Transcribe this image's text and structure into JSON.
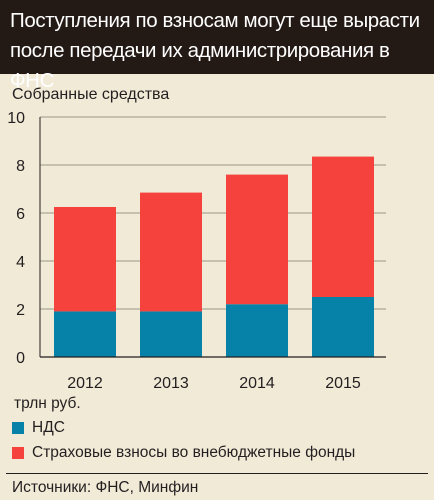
{
  "title": "Поступления по взносам могут еще вырасти после передачи их администрирования в ФНС",
  "chart_data": {
    "type": "bar",
    "stacked": true,
    "subtitle": "Собранные средства",
    "unit": "трлн руб.",
    "categories": [
      "2012",
      "2013",
      "2014",
      "2015"
    ],
    "series": [
      {
        "name": "НДС",
        "values": [
          1.9,
          1.9,
          2.2,
          2.5
        ],
        "color": "#0681a8"
      },
      {
        "name": "Страховые взносы во внебюджетные фонды",
        "values": [
          4.35,
          4.95,
          5.4,
          5.85
        ],
        "color": "#f6423c"
      }
    ],
    "ylim": [
      0,
      10
    ],
    "yticks": [
      0,
      2,
      4,
      6,
      8,
      10
    ],
    "grid": true,
    "legend_position": "bottom-left"
  },
  "source": "Источники: ФНС, Минфин",
  "colors": {
    "background": "#f1ead7",
    "header": "#241a15",
    "grid": "#9c968a"
  }
}
